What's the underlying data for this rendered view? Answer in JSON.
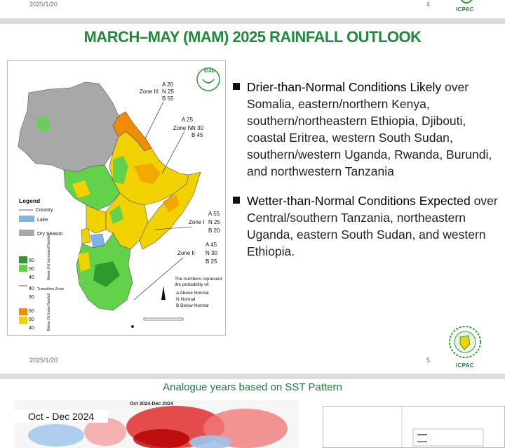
{
  "slide1": {
    "date": "2025/1/20",
    "page": "4",
    "logo_text": "ICPAC"
  },
  "slide2": {
    "date": "2025/1/20",
    "page": "5",
    "logo_text": "ICPAC",
    "title": "MARCH–MAY (MAM) 2025 RAINFALL OUTLOOK",
    "map": {
      "logo_text": "IGAD",
      "zones": [
        {
          "label": "Zone III",
          "a": "A 20",
          "n": "N 25",
          "b": "B 55"
        },
        {
          "label": "Zone IV",
          "a": "A 25",
          "n": "N 30",
          "b": "B 45"
        },
        {
          "label": "Zone I",
          "a": "A 55",
          "n": "N 25",
          "b": "B 20"
        },
        {
          "label": "Zone II",
          "a": "A 45",
          "n": "N 30",
          "b": "B 25"
        }
      ],
      "legend": {
        "title": "Legend",
        "country": "Country",
        "lake": "Lake",
        "dry_season": "Dry Season",
        "above_values": [
          "60",
          "50",
          "40"
        ],
        "above_label": "Above (%) Increased Rainfall",
        "transition_values": [
          "40",
          "30"
        ],
        "transition_label": "Transition Zone",
        "below_values": [
          "60",
          "50",
          "40"
        ],
        "below_label": "Below (%) Less Rainfall"
      },
      "notes": {
        "line1": "The numbers represent",
        "line2": "the probability of:",
        "a": "A   Above Normal",
        "n": "N   Normal",
        "b": "B   Below Normal"
      },
      "colors": {
        "green_dark": "#2e9a2e",
        "green_light": "#63d24a",
        "yellow": "#f2d100",
        "orange": "#f08c00",
        "gray": "#a8a8a8",
        "lake": "#7fb3e6"
      }
    },
    "bullets": [
      {
        "bold": "Drier-than-Normal Conditions Likely",
        "text": " over Somalia, eastern/northern Kenya, southern/northeastern Ethiopia, Djibouti, coastal Eritrea, western South Sudan, southern/western Uganda, Rwanda, Burundi, and northwestern Tanzania"
      },
      {
        "bold": "Wetter-than-Normal Conditions Expected",
        "text": " over Central/southern Tanzania, northeastern Uganda, eastern South Sudan, and western Ethiopia."
      }
    ]
  },
  "slide3": {
    "title": "Analogue years based on SST Pattern",
    "sst_label": "Oct - Dec 2024",
    "sst_caption": "Oct 2024-Dec 2024"
  }
}
